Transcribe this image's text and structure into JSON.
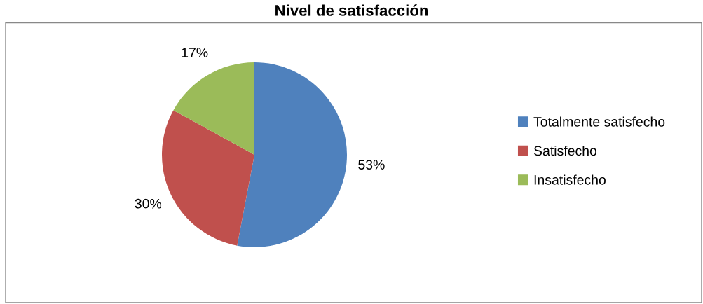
{
  "chart_data": {
    "type": "pie",
    "title": "Nivel de satisfacción",
    "categories": [
      "Totalmente satisfecho",
      "Satisfecho",
      "Insatisfecho"
    ],
    "values": [
      53,
      30,
      17
    ],
    "colors": [
      "#4f81bd",
      "#c0504d",
      "#9bbb59"
    ],
    "value_labels": [
      "53%",
      "30%",
      "17%"
    ],
    "legend": "right"
  }
}
